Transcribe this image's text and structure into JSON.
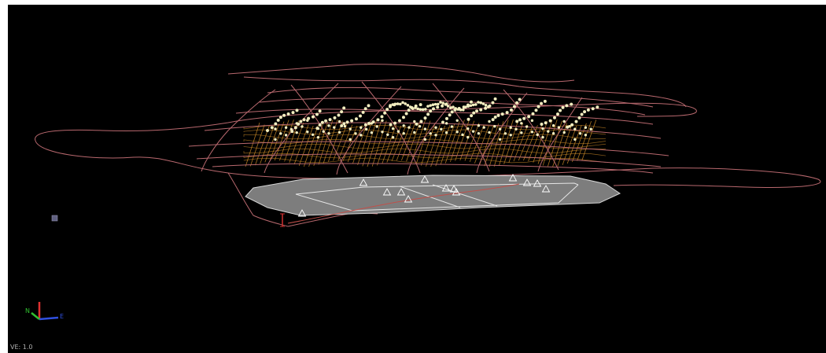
{
  "viewer": {
    "vertical_exaggeration_label": "VE: 1.0"
  },
  "axes": {
    "north_label": "N",
    "east_label": "E"
  },
  "colors": {
    "background": "#000000",
    "track_line": "#b8686e",
    "sample_point": "#f3eec0",
    "orange_mesh": "#e39a2c",
    "surface_fill": "#7d7d7d",
    "surface_edge": "#d6d6d6",
    "marker_triangle": "#ffffff",
    "axis_z": "#e03030",
    "axis_n": "#30c030",
    "axis_e": "#3050e0"
  },
  "icons": {
    "triangle_marker": "triangle-marker-icon",
    "small_square": "square-marker-icon",
    "orientation": "axes-orientation-icon"
  }
}
